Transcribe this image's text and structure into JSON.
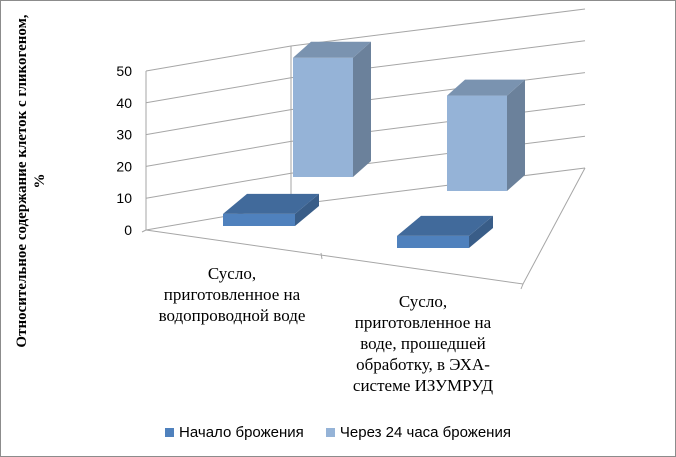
{
  "chart_data": {
    "type": "bar",
    "variant": "3d-clustered-column",
    "title": "",
    "ylabel": "Относительное содержание клеток с гликогеном, %",
    "xlabel": "",
    "ylim": [
      0,
      50
    ],
    "yticks": [
      "0",
      "10",
      "20",
      "30",
      "40",
      "50"
    ],
    "grid": true,
    "legend_position": "bottom",
    "categories": [
      "Сусло, приготовленное на водопроводной воде",
      "Сусло, приготовленное на воде, прошедшей обработку, в ЭХА-системе ИЗУМРУД"
    ],
    "categories_display": [
      [
        "Сусло,",
        "приготовленное на",
        "водопроводной воде"
      ],
      [
        "Сусло,",
        "приготовленное на",
        "воде, прошедшей",
        "обработку, в ЭХА-",
        "системе ИЗУМРУД"
      ]
    ],
    "series": [
      {
        "name": "Начало брожения",
        "values": [
          10,
          10
        ],
        "color": "#4f81bd"
      },
      {
        "name": "Через 24 часа брожения",
        "values": [
          50,
          40
        ],
        "color": "#95b3d7"
      }
    ]
  }
}
